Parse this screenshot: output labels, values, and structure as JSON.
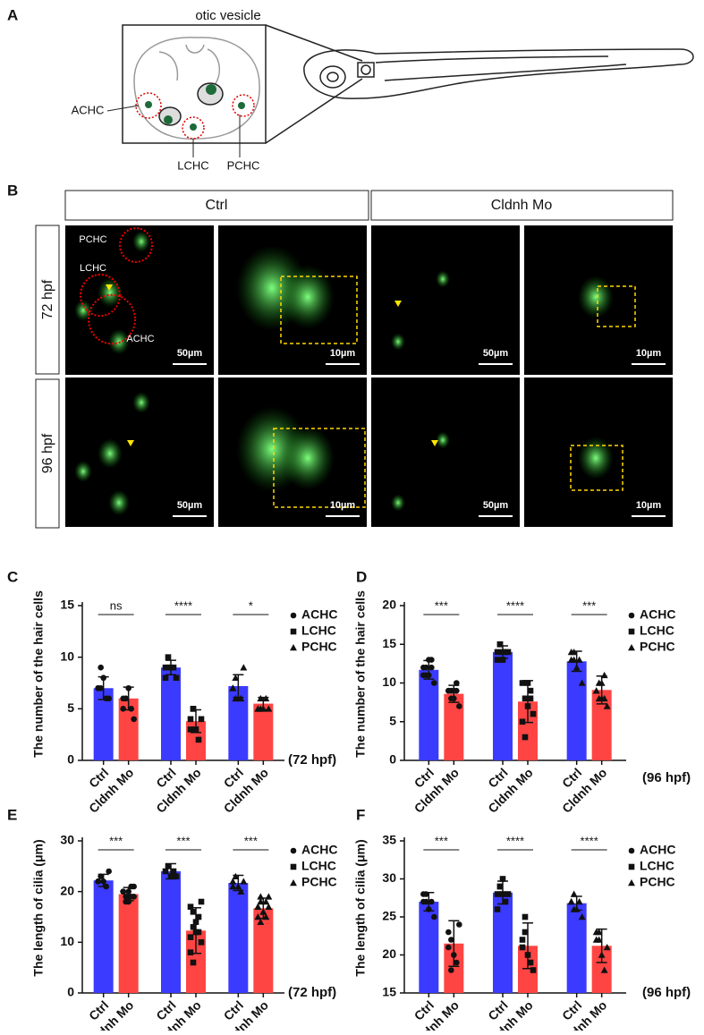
{
  "figure": {
    "panel_labels": [
      "A",
      "B",
      "C",
      "D",
      "E",
      "F"
    ],
    "schematic": {
      "title": "otic vesicle",
      "labels": [
        "ACHC",
        "LCHC",
        "PCHC"
      ]
    },
    "micrographs": {
      "conditions": [
        "Ctrl",
        "Cldnh Mo"
      ],
      "stages": [
        "72 hpf",
        "96 hpf"
      ],
      "cell_labels": [
        "PCHC",
        "LCHC",
        "ACHC"
      ],
      "scale_bars": [
        "50µm",
        "10µm"
      ]
    }
  },
  "chart_data": [
    {
      "type": "bar",
      "y_label": "The number of the hair cells",
      "note": "(72 hpf)",
      "categories": [
        "ACHC",
        "LCHC",
        "PCHC"
      ],
      "markers": [
        "circle",
        "square",
        "triangle"
      ],
      "significance": [
        "ns",
        "****",
        "*"
      ],
      "ylim": [
        0,
        15
      ],
      "yticks": [
        0,
        5,
        10,
        15
      ],
      "series": [
        {
          "name": "Ctrl",
          "color": "#3b3bff",
          "values": [
            7,
            9,
            7.2
          ],
          "errors": [
            1.1,
            0.7,
            1.1
          ],
          "points": [
            [
              7,
              7,
              8,
              6,
              6,
              7,
              9
            ],
            [
              9,
              10,
              9,
              9,
              8,
              8,
              9
            ],
            [
              7,
              8,
              6,
              6,
              9,
              7,
              6
            ]
          ]
        },
        {
          "name": "Cldnh Mo",
          "color": "#ff4444",
          "values": [
            6,
            3.8,
            5.5
          ],
          "errors": [
            1.1,
            1.1,
            0.6
          ],
          "points": [
            [
              6,
              6,
              7,
              5,
              4,
              5,
              6
            ],
            [
              4,
              5,
              3,
              2,
              4,
              3,
              5
            ],
            [
              5,
              6,
              5,
              6,
              5,
              5,
              5
            ]
          ]
        }
      ]
    },
    {
      "type": "bar",
      "y_label": "The number of the hair cells",
      "note": "(96 hpf)",
      "categories": [
        "ACHC",
        "LCHC",
        "PCHC"
      ],
      "markers": [
        "circle",
        "square",
        "triangle"
      ],
      "significance": [
        "***",
        "****",
        "***"
      ],
      "ylim": [
        0,
        20
      ],
      "yticks": [
        0,
        5,
        10,
        15,
        20
      ],
      "series": [
        {
          "name": "Ctrl",
          "color": "#3b3bff",
          "values": [
            11.7,
            14,
            12.8
          ],
          "errors": [
            1.2,
            0.8,
            1.3
          ],
          "points": [
            [
              12,
              11,
              13,
              12,
              10,
              11,
              12,
              11,
              13
            ],
            [
              14,
              15,
              13,
              14,
              14,
              13,
              15,
              14
            ],
            [
              13,
              14,
              12,
              13,
              10,
              14,
              13
            ]
          ]
        },
        {
          "name": "Cldnh Mo",
          "color": "#ff4444",
          "values": [
            8.6,
            7.6,
            9.1
          ],
          "errors": [
            1.1,
            2.7,
            1.8
          ],
          "points": [
            [
              9,
              8,
              9,
              9,
              7,
              9,
              9,
              8,
              10
            ],
            [
              10,
              8,
              7,
              9,
              6,
              5,
              3,
              10,
              8
            ],
            [
              9,
              10,
              8,
              11,
              7,
              9,
              8,
              10,
              8
            ]
          ]
        }
      ]
    },
    {
      "type": "bar",
      "y_label": "The length of cilia (μm)",
      "note": "(72 hpf)",
      "categories": [
        "ACHC",
        "LCHC",
        "PCHC"
      ],
      "markers": [
        "circle",
        "square",
        "triangle"
      ],
      "significance": [
        "***",
        "***",
        "***"
      ],
      "ylim": [
        0,
        30
      ],
      "yticks": [
        0,
        10,
        20,
        30
      ],
      "series": [
        {
          "name": "Ctrl",
          "color": "#3b3bff",
          "values": [
            22.2,
            24,
            21.7
          ],
          "errors": [
            1.2,
            1.5,
            1.5
          ],
          "points": [
            [
              22,
              23,
              22,
              21,
              24,
              22
            ],
            [
              24,
              25,
              23,
              24,
              23
            ],
            [
              22,
              23,
              21,
              20,
              22,
              21
            ]
          ]
        },
        {
          "name": "Cldnh Mo",
          "color": "#ff4444",
          "values": [
            19.5,
            12.3,
            16.7
          ],
          "errors": [
            1.3,
            4.5,
            2
          ],
          "points": [
            [
              20,
              19,
              18,
              21,
              19,
              20,
              18,
              20,
              19,
              21,
              20
            ],
            [
              17,
              16,
              14,
              12,
              10,
              8,
              6,
              12,
              15,
              18,
              11,
              13
            ],
            [
              17,
              18,
              16,
              15,
              19,
              17,
              14,
              16,
              18,
              17,
              15,
              19
            ]
          ]
        }
      ]
    },
    {
      "type": "bar",
      "y_label": "The length of cilia (μm)",
      "note": "(96 hpf)",
      "categories": [
        "ACHC",
        "LCHC",
        "PCHC"
      ],
      "markers": [
        "circle",
        "square",
        "triangle"
      ],
      "significance": [
        "***",
        "****",
        "****"
      ],
      "ylim": [
        15,
        35
      ],
      "yticks": [
        15,
        20,
        25,
        30,
        35
      ],
      "series": [
        {
          "name": "Ctrl",
          "color": "#3b3bff",
          "values": [
            27,
            28.2,
            26.8
          ],
          "errors": [
            1.2,
            1.5,
            0.9
          ],
          "points": [
            [
              27,
              28,
              26,
              27,
              25,
              28,
              27
            ],
            [
              28,
              29,
              30,
              27,
              28,
              26,
              29,
              28
            ],
            [
              27,
              28,
              26,
              27,
              25,
              27,
              26
            ]
          ]
        },
        {
          "name": "Cldnh Mo",
          "color": "#ff4444",
          "values": [
            21.5,
            21.2,
            21.2
          ],
          "errors": [
            3,
            3,
            2.2
          ],
          "points": [
            [
              23,
              22,
              20,
              19,
              24,
              21,
              18
            ],
            [
              22,
              23,
              20,
              19,
              18,
              21,
              25
            ],
            [
              22,
              23,
              20,
              18,
              21,
              23,
              22
            ]
          ]
        }
      ]
    }
  ]
}
